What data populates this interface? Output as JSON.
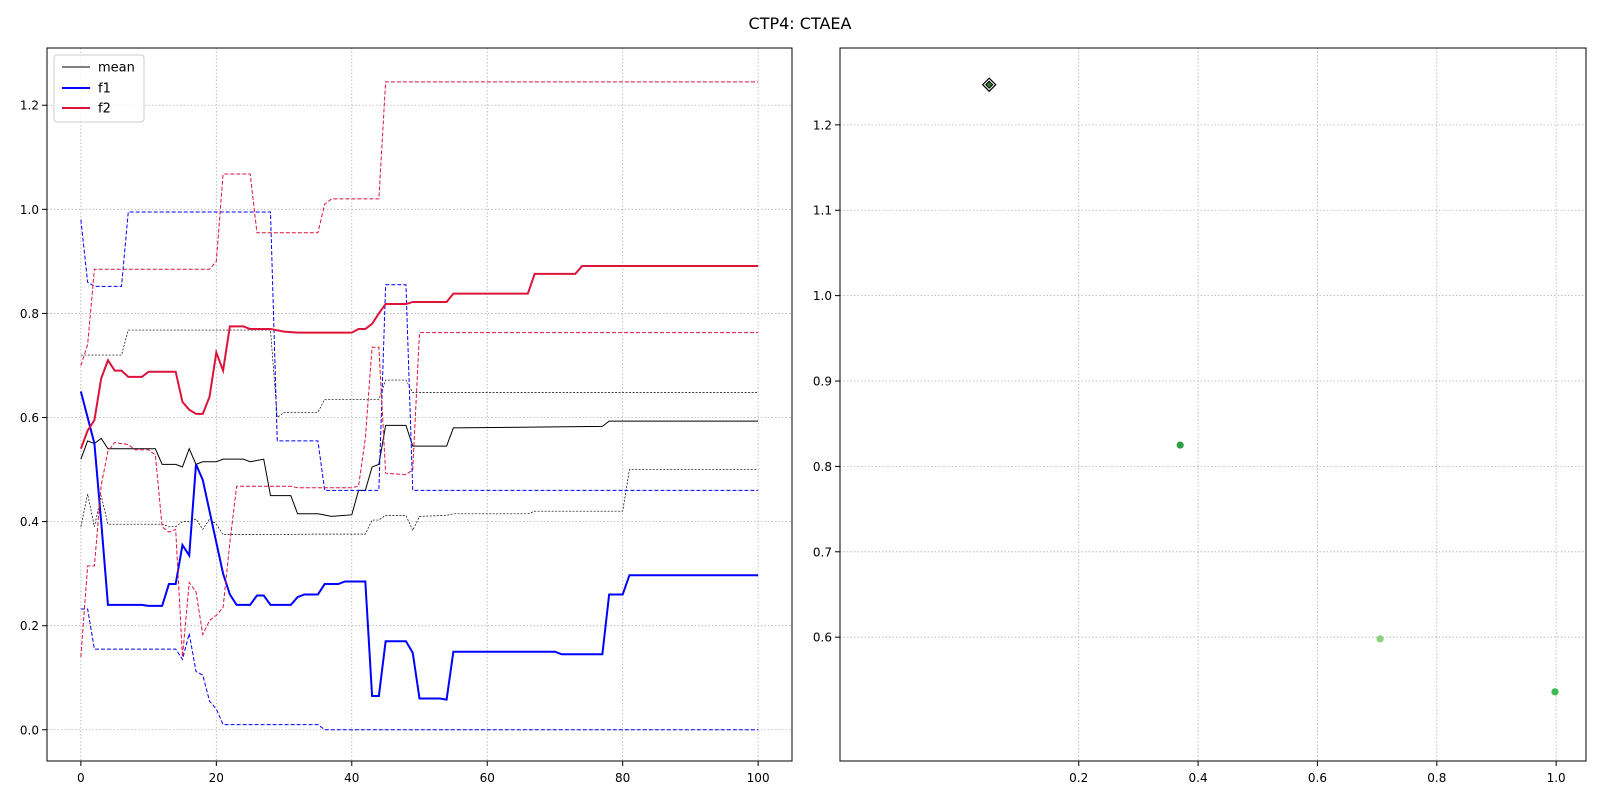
{
  "figure": {
    "title": "CTP4: CTAEA"
  },
  "chart_data": [
    {
      "type": "line",
      "title": "",
      "xlabel": "",
      "ylabel": "",
      "xlim": [
        -5,
        105
      ],
      "ylim": [
        -0.06,
        1.31
      ],
      "xticks": [
        0,
        20,
        40,
        60,
        80,
        100
      ],
      "yticks": [
        0.0,
        0.2,
        0.4,
        0.6,
        0.8,
        1.0,
        1.2
      ],
      "xtick_labels": [
        "0",
        "20",
        "40",
        "60",
        "80",
        "100"
      ],
      "ytick_labels": [
        "0.0",
        "0.2",
        "0.4",
        "0.6",
        "0.8",
        "1.0",
        "1.2"
      ],
      "grid": true,
      "legend": {
        "placement": "top-left",
        "entries": [
          "mean",
          "f1",
          "f2"
        ]
      },
      "series": [
        {
          "name": "mean",
          "role": "center",
          "color": "#000000",
          "points": [
            [
              0,
              0.52
            ],
            [
              1,
              0.555
            ],
            [
              2,
              0.55
            ],
            [
              3,
              0.56
            ],
            [
              4,
              0.54
            ],
            [
              7,
              0.54
            ],
            [
              10,
              0.54
            ],
            [
              11,
              0.54
            ],
            [
              12,
              0.51
            ],
            [
              14,
              0.51
            ],
            [
              15,
              0.505
            ],
            [
              16,
              0.54
            ],
            [
              17,
              0.51
            ],
            [
              18,
              0.515
            ],
            [
              20,
              0.515
            ],
            [
              21,
              0.52
            ],
            [
              24,
              0.52
            ],
            [
              25,
              0.515
            ],
            [
              27,
              0.52
            ],
            [
              28,
              0.45
            ],
            [
              31,
              0.45
            ],
            [
              32,
              0.415
            ],
            [
              35,
              0.415
            ],
            [
              37,
              0.41
            ],
            [
              40,
              0.413
            ],
            [
              41,
              0.46
            ],
            [
              42,
              0.46
            ],
            [
              43,
              0.505
            ],
            [
              44,
              0.51
            ],
            [
              45,
              0.585
            ],
            [
              48,
              0.585
            ],
            [
              49,
              0.545
            ],
            [
              54,
              0.545
            ],
            [
              55,
              0.58
            ],
            [
              77,
              0.583
            ],
            [
              78,
              0.593
            ],
            [
              100,
              0.593
            ]
          ]
        },
        {
          "name": "mean upper",
          "role": "band",
          "color": "#000000",
          "points": [
            [
              0,
              0.72
            ],
            [
              5,
              0.72
            ],
            [
              6,
              0.72
            ],
            [
              7,
              0.768
            ],
            [
              28,
              0.768
            ],
            [
              29,
              0.6
            ],
            [
              30,
              0.61
            ],
            [
              35,
              0.61
            ],
            [
              36,
              0.635
            ],
            [
              43,
              0.635
            ],
            [
              44,
              0.635
            ],
            [
              45,
              0.672
            ],
            [
              48,
              0.672
            ],
            [
              49,
              0.648
            ],
            [
              100,
              0.648
            ]
          ]
        },
        {
          "name": "mean lower",
          "role": "band",
          "color": "#000000",
          "points": [
            [
              0,
              0.39
            ],
            [
              1,
              0.453
            ],
            [
              2,
              0.39
            ],
            [
              3,
              0.45
            ],
            [
              4,
              0.395
            ],
            [
              12,
              0.395
            ],
            [
              13,
              0.39
            ],
            [
              14,
              0.39
            ],
            [
              15,
              0.4
            ],
            [
              16,
              0.4
            ],
            [
              17,
              0.405
            ],
            [
              18,
              0.385
            ],
            [
              19,
              0.405
            ],
            [
              20,
              0.395
            ],
            [
              21,
              0.375
            ],
            [
              27,
              0.375
            ],
            [
              35,
              0.376
            ],
            [
              42,
              0.376
            ],
            [
              43,
              0.403
            ],
            [
              44,
              0.403
            ],
            [
              45,
              0.412
            ],
            [
              48,
              0.412
            ],
            [
              49,
              0.383
            ],
            [
              50,
              0.41
            ],
            [
              54,
              0.412
            ],
            [
              55,
              0.415
            ],
            [
              66,
              0.415
            ],
            [
              67,
              0.42
            ],
            [
              80,
              0.42
            ],
            [
              81,
              0.5
            ],
            [
              100,
              0.5
            ]
          ]
        },
        {
          "name": "f1",
          "role": "center",
          "color": "#0000ff",
          "points": [
            [
              0,
              0.65
            ],
            [
              1,
              0.6
            ],
            [
              2,
              0.55
            ],
            [
              3,
              0.4
            ],
            [
              4,
              0.24
            ],
            [
              8,
              0.24
            ],
            [
              9,
              0.24
            ],
            [
              10,
              0.238
            ],
            [
              12,
              0.238
            ],
            [
              13,
              0.28
            ],
            [
              14,
              0.28
            ],
            [
              15,
              0.355
            ],
            [
              16,
              0.335
            ],
            [
              17,
              0.51
            ],
            [
              18,
              0.48
            ],
            [
              19,
              0.42
            ],
            [
              20,
              0.36
            ],
            [
              21,
              0.3
            ],
            [
              22,
              0.26
            ],
            [
              23,
              0.24
            ],
            [
              25,
              0.24
            ],
            [
              26,
              0.258
            ],
            [
              27,
              0.258
            ],
            [
              28,
              0.24
            ],
            [
              31,
              0.24
            ],
            [
              32,
              0.255
            ],
            [
              33,
              0.26
            ],
            [
              35,
              0.26
            ],
            [
              36,
              0.28
            ],
            [
              38,
              0.28
            ],
            [
              39,
              0.285
            ],
            [
              42,
              0.285
            ],
            [
              43,
              0.065
            ],
            [
              44,
              0.065
            ],
            [
              45,
              0.17
            ],
            [
              48,
              0.17
            ],
            [
              49,
              0.148
            ],
            [
              50,
              0.06
            ],
            [
              53,
              0.06
            ],
            [
              54,
              0.058
            ],
            [
              55,
              0.15
            ],
            [
              70,
              0.15
            ],
            [
              71,
              0.145
            ],
            [
              77,
              0.145
            ],
            [
              78,
              0.26
            ],
            [
              80,
              0.26
            ],
            [
              81,
              0.297
            ],
            [
              100,
              0.297
            ]
          ]
        },
        {
          "name": "f1 upper",
          "role": "band",
          "color": "#0000ff",
          "points": [
            [
              0,
              0.98
            ],
            [
              1,
              0.86
            ],
            [
              2,
              0.852
            ],
            [
              6,
              0.852
            ],
            [
              7,
              0.995
            ],
            [
              28,
              0.995
            ],
            [
              29,
              0.555
            ],
            [
              35,
              0.555
            ],
            [
              36,
              0.46
            ],
            [
              43,
              0.46
            ],
            [
              44,
              0.46
            ],
            [
              45,
              0.855
            ],
            [
              48,
              0.855
            ],
            [
              49,
              0.46
            ],
            [
              100,
              0.46
            ]
          ]
        },
        {
          "name": "f1 lower",
          "role": "band",
          "color": "#0000ff",
          "points": [
            [
              0,
              0.232
            ],
            [
              1,
              0.232
            ],
            [
              2,
              0.155
            ],
            [
              14,
              0.155
            ],
            [
              15,
              0.135
            ],
            [
              16,
              0.185
            ],
            [
              17,
              0.112
            ],
            [
              18,
              0.105
            ],
            [
              19,
              0.055
            ],
            [
              20,
              0.04
            ],
            [
              21,
              0.01
            ],
            [
              35,
              0.01
            ],
            [
              36,
              0.0
            ],
            [
              100,
              0.0
            ]
          ]
        },
        {
          "name": "f2",
          "role": "center",
          "color": "#dc143c",
          "points": [
            [
              0,
              0.54
            ],
            [
              1,
              0.575
            ],
            [
              2,
              0.595
            ],
            [
              3,
              0.675
            ],
            [
              4,
              0.71
            ],
            [
              5,
              0.69
            ],
            [
              6,
              0.69
            ],
            [
              7,
              0.678
            ],
            [
              9,
              0.678
            ],
            [
              10,
              0.688
            ],
            [
              14,
              0.688
            ],
            [
              15,
              0.63
            ],
            [
              16,
              0.615
            ],
            [
              17,
              0.607
            ],
            [
              18,
              0.607
            ],
            [
              19,
              0.64
            ],
            [
              20,
              0.725
            ],
            [
              21,
              0.69
            ],
            [
              22,
              0.775
            ],
            [
              24,
              0.775
            ],
            [
              25,
              0.77
            ],
            [
              28,
              0.77
            ],
            [
              30,
              0.765
            ],
            [
              32,
              0.763
            ],
            [
              40,
              0.763
            ],
            [
              41,
              0.77
            ],
            [
              42,
              0.77
            ],
            [
              43,
              0.78
            ],
            [
              44,
              0.8
            ],
            [
              45,
              0.818
            ],
            [
              48,
              0.818
            ],
            [
              49,
              0.822
            ],
            [
              54,
              0.822
            ],
            [
              55,
              0.838
            ],
            [
              66,
              0.838
            ],
            [
              67,
              0.876
            ],
            [
              73,
              0.876
            ],
            [
              74,
              0.891
            ],
            [
              100,
              0.891
            ]
          ]
        },
        {
          "name": "f2 upper",
          "role": "band",
          "color": "#dc143c",
          "points": [
            [
              0,
              0.7
            ],
            [
              1,
              0.74
            ],
            [
              2,
              0.885
            ],
            [
              19,
              0.885
            ],
            [
              20,
              0.9
            ],
            [
              21,
              1.068
            ],
            [
              25,
              1.068
            ],
            [
              26,
              0.955
            ],
            [
              35,
              0.955
            ],
            [
              36,
              1.01
            ],
            [
              37,
              1.02
            ],
            [
              43,
              1.02
            ],
            [
              44,
              1.02
            ],
            [
              45,
              1.245
            ],
            [
              100,
              1.245
            ]
          ]
        },
        {
          "name": "f2 lower",
          "role": "band",
          "color": "#dc143c",
          "points": [
            [
              0,
              0.14
            ],
            [
              1,
              0.315
            ],
            [
              2,
              0.315
            ],
            [
              3,
              0.47
            ],
            [
              4,
              0.535
            ],
            [
              5,
              0.552
            ],
            [
              7,
              0.548
            ],
            [
              8,
              0.538
            ],
            [
              10,
              0.538
            ],
            [
              11,
              0.528
            ],
            [
              12,
              0.39
            ],
            [
              13,
              0.38
            ],
            [
              14,
              0.385
            ],
            [
              15,
              0.14
            ],
            [
              16,
              0.283
            ],
            [
              17,
              0.265
            ],
            [
              18,
              0.183
            ],
            [
              19,
              0.21
            ],
            [
              20,
              0.22
            ],
            [
              21,
              0.235
            ],
            [
              22,
              0.36
            ],
            [
              23,
              0.468
            ],
            [
              31,
              0.468
            ],
            [
              32,
              0.465
            ],
            [
              40,
              0.465
            ],
            [
              41,
              0.468
            ],
            [
              42,
              0.56
            ],
            [
              43,
              0.735
            ],
            [
              44,
              0.735
            ],
            [
              45,
              0.493
            ],
            [
              48,
              0.49
            ],
            [
              49,
              0.5
            ],
            [
              50,
              0.763
            ],
            [
              100,
              0.763
            ]
          ]
        }
      ]
    },
    {
      "type": "scatter",
      "title": "",
      "xlabel": "",
      "ylabel": "",
      "xlim": [
        -0.2,
        1.05
      ],
      "ylim": [
        0.455,
        1.29
      ],
      "xticks": [
        0.2,
        0.4,
        0.6,
        0.8,
        1.0
      ],
      "yticks": [
        0.6,
        0.7,
        0.8,
        0.9,
        1.0,
        1.1,
        1.2
      ],
      "xtick_labels": [
        "0.2",
        "0.4",
        "0.6",
        "0.8",
        "1.0"
      ],
      "ytick_labels": [
        "0.6",
        "0.7",
        "0.8",
        "0.9",
        "1.0",
        "1.1",
        "1.2"
      ],
      "grid": true,
      "points": [
        {
          "x": 0.05,
          "y": 1.247,
          "marker": "diamond",
          "fill": "#2e7d32",
          "stroke": "#000000"
        },
        {
          "x": 0.37,
          "y": 0.825,
          "marker": "circle",
          "fill": "#2ea043",
          "stroke": "#2ea043"
        },
        {
          "x": 0.705,
          "y": 0.598,
          "marker": "circle",
          "fill": "#8bd17c",
          "stroke": "#8bd17c"
        },
        {
          "x": 0.998,
          "y": 0.536,
          "marker": "circle",
          "fill": "#3cb853",
          "stroke": "#3cb853"
        }
      ]
    }
  ]
}
